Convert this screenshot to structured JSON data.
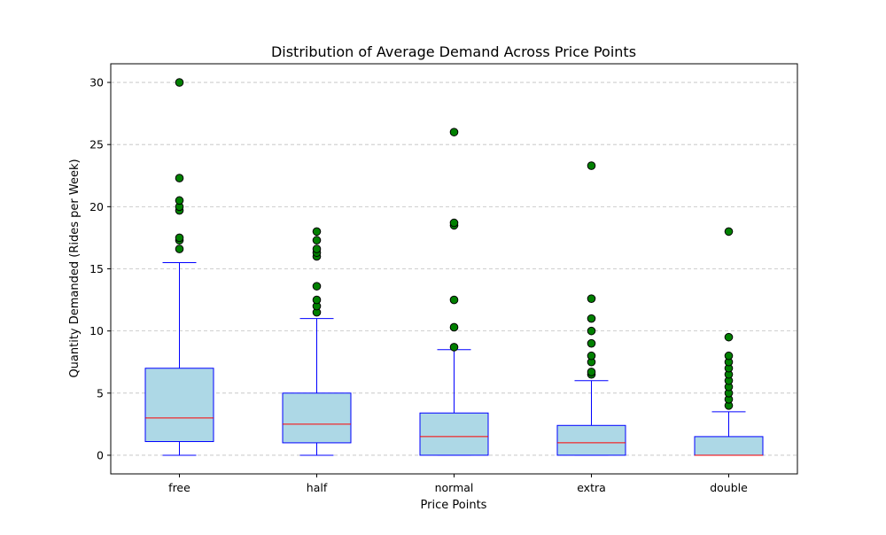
{
  "chart_data": {
    "type": "box",
    "title": "Distribution of Average Demand Across Price Points",
    "xlabel": "Price Points",
    "ylabel": "Quantity Demanded (Rides per Week)",
    "categories": [
      "free",
      "half",
      "normal",
      "extra",
      "double"
    ],
    "ylim": [
      -1.5,
      31.5
    ],
    "yticks": [
      0,
      5,
      10,
      15,
      20,
      25,
      30
    ],
    "grid": "y-dashed",
    "colors": {
      "box_fill": "#add8e6",
      "box_edge": "#0000ff",
      "median": "#ff0000",
      "whisker": "#0000ff",
      "flier_fill": "#008000",
      "flier_edge": "#000000",
      "grid": "#c0c0c0"
    },
    "boxes": [
      {
        "category": "free",
        "whisker_low": 0,
        "q1": 1.1,
        "median": 3.0,
        "q3": 7.0,
        "whisker_high": 15.5,
        "outliers": [
          16.6,
          17.3,
          17.5,
          19.7,
          20.0,
          20.5,
          22.3,
          30.0
        ]
      },
      {
        "category": "half",
        "whisker_low": 0,
        "q1": 1.0,
        "median": 2.5,
        "q3": 5.0,
        "whisker_high": 11.0,
        "outliers": [
          11.5,
          12.0,
          12.5,
          13.6,
          16.0,
          16.3,
          16.6,
          17.3,
          18.0
        ]
      },
      {
        "category": "normal",
        "whisker_low": 0,
        "q1": 0,
        "median": 1.5,
        "q3": 3.4,
        "whisker_high": 8.5,
        "outliers": [
          8.7,
          10.3,
          12.5,
          18.5,
          18.7,
          26.0
        ]
      },
      {
        "category": "extra",
        "whisker_low": 0,
        "q1": 0,
        "median": 1.0,
        "q3": 2.4,
        "whisker_high": 6.0,
        "outliers": [
          6.5,
          6.7,
          7.5,
          8.0,
          9.0,
          10.0,
          11.0,
          12.6,
          23.3
        ]
      },
      {
        "category": "double",
        "whisker_low": 0,
        "q1": 0,
        "median": 0,
        "q3": 1.5,
        "whisker_high": 3.5,
        "outliers": [
          4.0,
          4.5,
          5.0,
          5.5,
          6.0,
          6.5,
          7.0,
          7.5,
          8.0,
          9.5,
          18.0
        ]
      }
    ]
  }
}
